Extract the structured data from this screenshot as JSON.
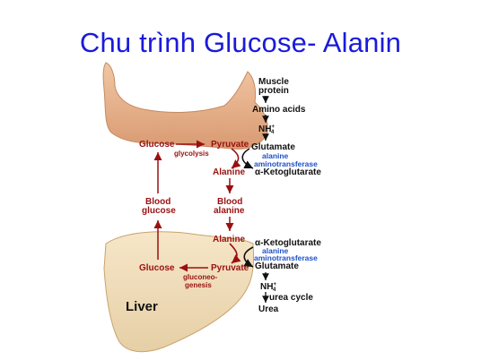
{
  "title": "Chu trình Glucose- Alanin",
  "labels": {
    "muscle_protein_1": "Muscle",
    "muscle_protein_2": "protein",
    "amino_acids": "Amino acids",
    "nh4_top": "NH",
    "nh4_top_sup": "+",
    "nh4_top_sub": "4",
    "glucose_top": "Glucose",
    "glycolysis": "glycolysis",
    "pyruvate_top": "Pyruvate",
    "glutamate_top": "Glutamate",
    "alanine_at_top_1": "alanine",
    "alanine_at_top_2": "aminotransferase",
    "alanine_top": "Alanine",
    "akg_top": "α-Ketoglutarate",
    "blood_glucose_1": "Blood",
    "blood_glucose_2": "glucose",
    "blood_alanine_1": "Blood",
    "blood_alanine_2": "alanine",
    "alanine_bottom": "Alanine",
    "akg_bottom": "α-Ketoglutarate",
    "alanine_at_bot_1": "alanine",
    "alanine_at_bot_2": "aminotransferase",
    "glutamate_bottom": "Glutamate",
    "glucose_bottom": "Glucose",
    "pyruvate_bottom": "Pyruvate",
    "gluconeo_1": "gluconeo-",
    "gluconeo_2": "genesis",
    "nh4_bottom": "NH",
    "nh4_bot_sup": "+",
    "nh4_bot_sub": "4",
    "urea_cycle": "urea cycle",
    "urea": "Urea",
    "liver": "Liver"
  },
  "colors": {
    "title": "#1a1adb",
    "pathway": "#9a1010",
    "enzyme": "#1e50c8",
    "arm": "#e6b48e",
    "liver": "#f0dcb8"
  }
}
